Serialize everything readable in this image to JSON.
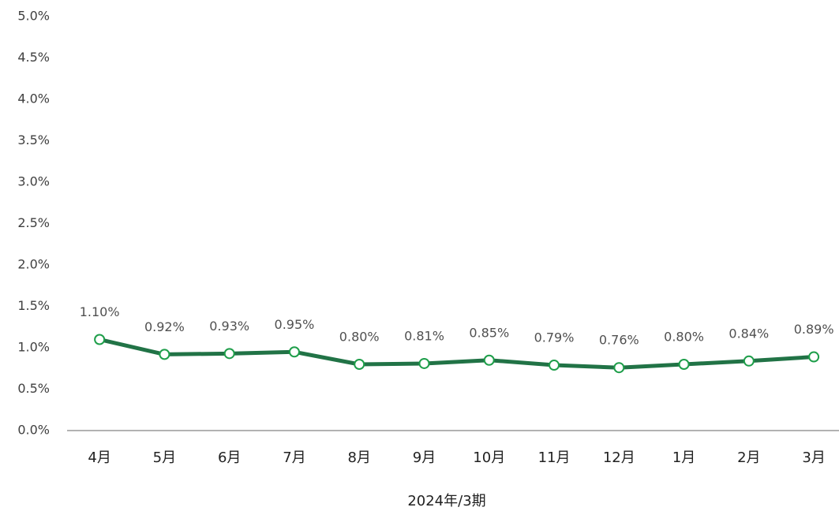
{
  "chart_data": {
    "type": "line",
    "x_label": "2024年/3期",
    "categories": [
      "4月",
      "5月",
      "6月",
      "7月",
      "8月",
      "9月",
      "10月",
      "11月",
      "12月",
      "1月",
      "2月",
      "3月"
    ],
    "series": [
      {
        "color": "#217346",
        "values": [
          1.1,
          0.92,
          0.93,
          0.95,
          0.8,
          0.81,
          0.85,
          0.79,
          0.76,
          0.8,
          0.84,
          0.89
        ],
        "value_labels": [
          "1.10%",
          "0.92%",
          "0.93%",
          "0.95%",
          "0.80%",
          "0.81%",
          "0.85%",
          "0.79%",
          "0.76%",
          "0.80%",
          "0.84%",
          "0.89%"
        ]
      }
    ],
    "ylim": [
      0,
      5
    ],
    "yticks": [
      {
        "value": 0,
        "label": "0.0%"
      },
      {
        "value": 0.5,
        "label": "0.5%"
      },
      {
        "value": 1,
        "label": "1.0%"
      },
      {
        "value": 1.5,
        "label": "1.5%"
      },
      {
        "value": 2,
        "label": "2.0%"
      },
      {
        "value": 2.5,
        "label": "2.5%"
      },
      {
        "value": 3,
        "label": "3.0%"
      },
      {
        "value": 3.5,
        "label": "3.5%"
      },
      {
        "value": 4,
        "label": "4.0%"
      },
      {
        "value": 4.5,
        "label": "4.5%"
      },
      {
        "value": 5,
        "label": "5.0%"
      }
    ],
    "grid": false
  }
}
